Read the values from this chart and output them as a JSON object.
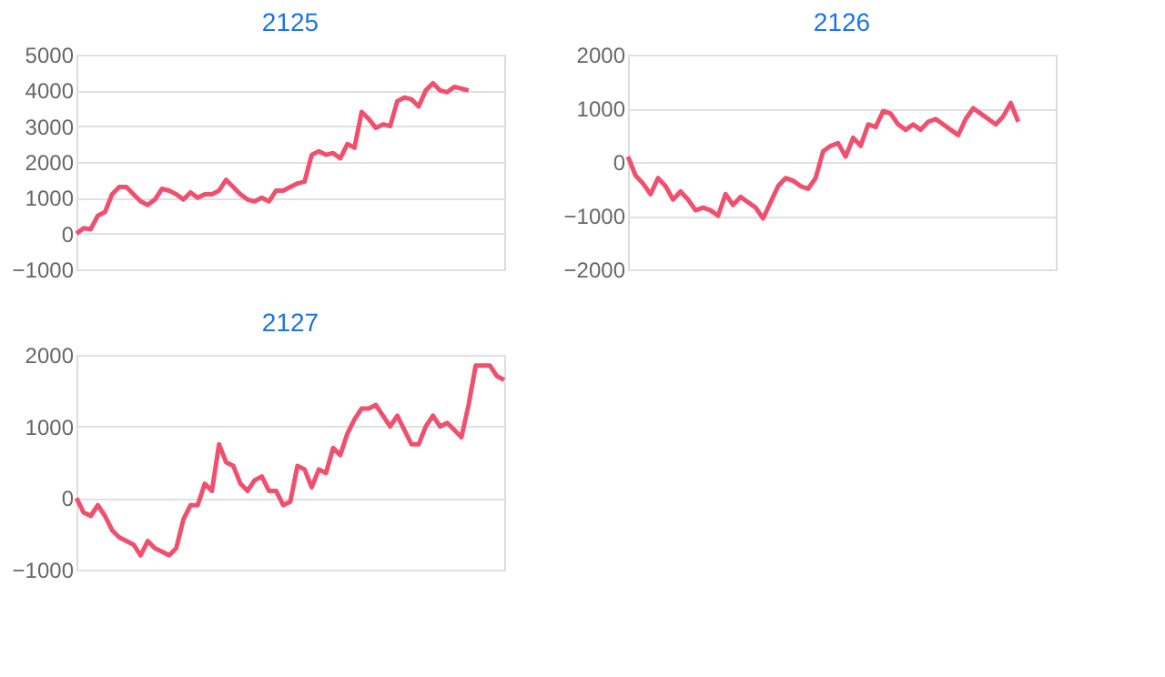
{
  "chart_data": [
    {
      "type": "line",
      "title": "2125",
      "categories": [
        null,
        null,
        null,
        null,
        null,
        null,
        null,
        null,
        null,
        null,
        null,
        null,
        null,
        null,
        null,
        null,
        null,
        null,
        null,
        null,
        null,
        null,
        null,
        null,
        null,
        null,
        null,
        null,
        null,
        null,
        null,
        null,
        null,
        null,
        null,
        null,
        null,
        null,
        null,
        null,
        null,
        null,
        null,
        null,
        null,
        null,
        null,
        null,
        null,
        null,
        null,
        null,
        null,
        null,
        null,
        null,
        null,
        null,
        null,
        null,
        null
      ],
      "series": [
        {
          "color": "#f0506e",
          "values": [
            0,
            150,
            120,
            500,
            600,
            1100,
            1300,
            1300,
            1100,
            900,
            800,
            950,
            1250,
            1200,
            1100,
            950,
            1150,
            1000,
            1100,
            1100,
            1200,
            1500,
            1300,
            1100,
            950,
            900,
            1000,
            900,
            1200,
            1200,
            1300,
            1400,
            1450,
            2200,
            2300,
            2200,
            2250,
            2100,
            2500,
            2400,
            3400,
            3200,
            2950,
            3050,
            3000,
            3700,
            3800,
            3750,
            3550,
            4000,
            4200,
            4000,
            3950,
            4100,
            4050,
            4000,
            null,
            null,
            null,
            null,
            null
          ]
        }
      ],
      "ylim": [
        -1000,
        5000
      ],
      "yticks": [
        -1000,
        0,
        1000,
        2000,
        3000,
        4000,
        5000
      ],
      "grid": "y",
      "tick_labels": "y",
      "line_style": "solid",
      "marker": "none"
    },
    {
      "type": "line",
      "title": "2126",
      "categories": [
        null,
        null,
        null,
        null,
        null,
        null,
        null,
        null,
        null,
        null,
        null,
        null,
        null,
        null,
        null,
        null,
        null,
        null,
        null,
        null,
        null,
        null,
        null,
        null,
        null,
        null,
        null,
        null,
        null,
        null,
        null,
        null,
        null,
        null,
        null,
        null,
        null,
        null,
        null,
        null,
        null,
        null,
        null,
        null,
        null,
        null,
        null,
        null,
        null,
        null,
        null,
        null,
        null,
        null,
        null,
        null,
        null,
        null
      ],
      "series": [
        {
          "color": "#f0506e",
          "values": [
            100,
            -250,
            -400,
            -600,
            -300,
            -450,
            -700,
            -550,
            -700,
            -900,
            -850,
            -900,
            -1000,
            -600,
            -800,
            -650,
            -750,
            -850,
            -1050,
            -750,
            -450,
            -300,
            -350,
            -450,
            -500,
            -300,
            200,
            300,
            350,
            100,
            450,
            300,
            700,
            650,
            950,
            900,
            700,
            600,
            700,
            600,
            750,
            800,
            700,
            600,
            500,
            800,
            1000,
            900,
            800,
            700,
            850,
            1100,
            750,
            null,
            null,
            null,
            null,
            null
          ]
        }
      ],
      "ylim": [
        -2000,
        2000
      ],
      "yticks": [
        -2000,
        -1000,
        0,
        1000,
        2000
      ],
      "grid": "y",
      "tick_labels": "y",
      "line_style": "solid",
      "marker": "none"
    },
    {
      "type": "line",
      "title": "2127",
      "categories": [
        null,
        null,
        null,
        null,
        null,
        null,
        null,
        null,
        null,
        null,
        null,
        null,
        null,
        null,
        null,
        null,
        null,
        null,
        null,
        null,
        null,
        null,
        null,
        null,
        null,
        null,
        null,
        null,
        null,
        null,
        null,
        null,
        null,
        null,
        null,
        null,
        null,
        null,
        null,
        null,
        null,
        null,
        null,
        null,
        null,
        null,
        null,
        null,
        null,
        null,
        null,
        null,
        null,
        null,
        null,
        null,
        null,
        null,
        null,
        null,
        null
      ],
      "series": [
        {
          "color": "#f0506e",
          "values": [
            0,
            -200,
            -250,
            -100,
            -250,
            -450,
            -550,
            -600,
            -650,
            -800,
            -600,
            -700,
            -750,
            -800,
            -700,
            -300,
            -100,
            -100,
            200,
            100,
            750,
            500,
            450,
            200,
            100,
            250,
            300,
            100,
            100,
            -100,
            -50,
            450,
            400,
            150,
            400,
            350,
            700,
            600,
            900,
            1100,
            1250,
            1250,
            1300,
            1150,
            1000,
            1150,
            950,
            750,
            750,
            1000,
            1150,
            1000,
            1050,
            950,
            850,
            1300,
            1850,
            1850,
            1850,
            1700,
            1650
          ]
        }
      ],
      "ylim": [
        -1000,
        2000
      ],
      "yticks": [
        -1000,
        0,
        1000,
        2000
      ],
      "grid": "y",
      "tick_labels": "y",
      "line_style": "solid",
      "marker": "none"
    }
  ]
}
